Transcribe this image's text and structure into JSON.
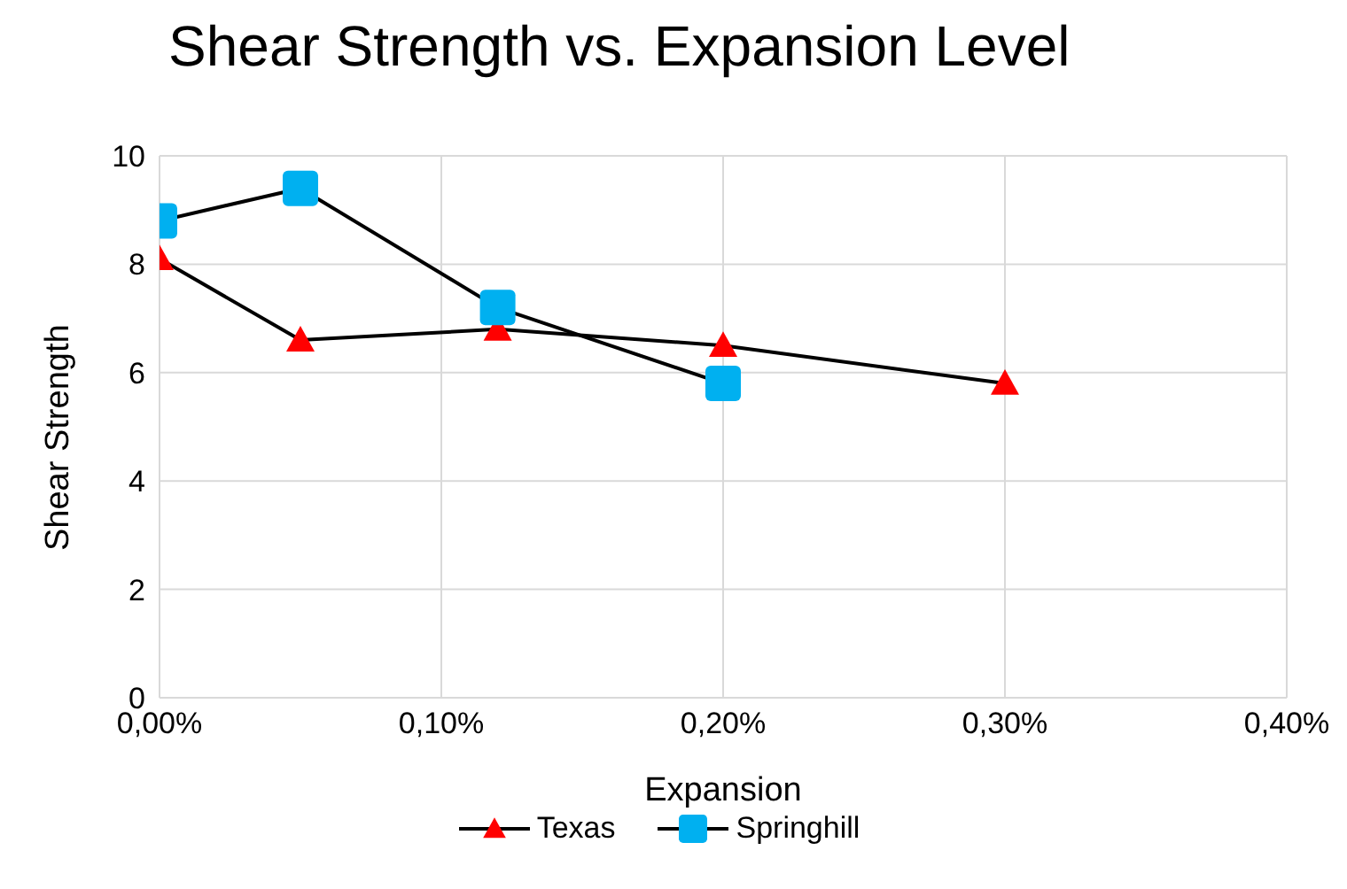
{
  "chart_data": {
    "type": "line",
    "title": "Shear Strength vs. Expansion Level",
    "xlabel": "Expansion",
    "ylabel": "Shear Strength",
    "series": [
      {
        "name": "Texas",
        "color": "#ff0000",
        "marker": "triangle",
        "x": [
          0,
          0.05,
          0.12,
          0.2,
          0.3
        ],
        "values": [
          8.1,
          6.6,
          6.8,
          6.5,
          5.8
        ]
      },
      {
        "name": "Springhill",
        "color": "#00b0f0",
        "marker": "square",
        "x": [
          0,
          0.05,
          0.12,
          0.2
        ],
        "values": [
          8.8,
          9.4,
          7.2,
          5.8
        ]
      }
    ],
    "xlim": [
      0,
      0.4
    ],
    "xticks": [
      {
        "value": 0,
        "label": "0,00%"
      },
      {
        "value": 0.1,
        "label": "0,10%"
      },
      {
        "value": 0.2,
        "label": "0,20%"
      },
      {
        "value": 0.3,
        "label": "0,30%"
      },
      {
        "value": 0.4,
        "label": "0,40%"
      }
    ],
    "ylim": [
      0,
      10
    ],
    "yticks": [
      0,
      2,
      4,
      6,
      8,
      10
    ],
    "grid": true,
    "legend": "bottom",
    "line_style": "solid"
  }
}
